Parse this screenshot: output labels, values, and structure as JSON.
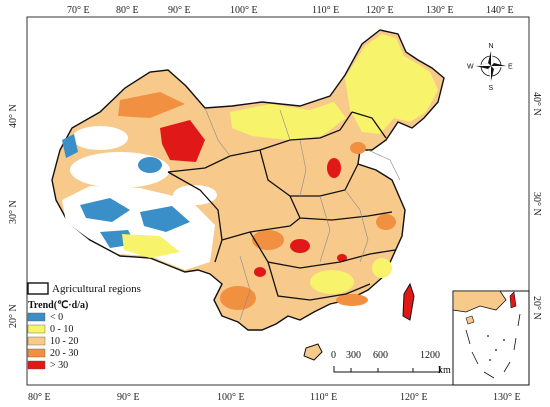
{
  "top_ticks": [
    "70° E",
    "80° E",
    "90° E",
    "100° E",
    "110° E",
    "120° E",
    "130° E",
    "140° E"
  ],
  "bottom_ticks": [
    "80° E",
    "90° E",
    "100° E",
    "110° E",
    "120° E",
    "130° E"
  ],
  "left_ticks": [
    "40° N",
    "30° N",
    "20° N"
  ],
  "right_ticks": [
    "40° N",
    "30° N",
    "20° N"
  ],
  "legend": {
    "boundary_label": "Agricultural regions",
    "title": "Trend(℃·d/a)",
    "classes": [
      {
        "label": "< 0",
        "color": "#3a8fc8"
      },
      {
        "label": "0 - 10",
        "color": "#f7f36a"
      },
      {
        "label": "10 - 20",
        "color": "#f7c98a"
      },
      {
        "label": "20 - 30",
        "color": "#f09040"
      },
      {
        "label": "> 30",
        "color": "#e01818"
      }
    ]
  },
  "compass": {
    "n": "N",
    "s": "S",
    "e": "E",
    "w": "W"
  },
  "scale_bar": {
    "labels": [
      "0",
      "300",
      "600",
      "1200"
    ],
    "unit": "km"
  },
  "colors": {
    "border": "#111111",
    "province": "#888888",
    "frame": "#333333"
  }
}
